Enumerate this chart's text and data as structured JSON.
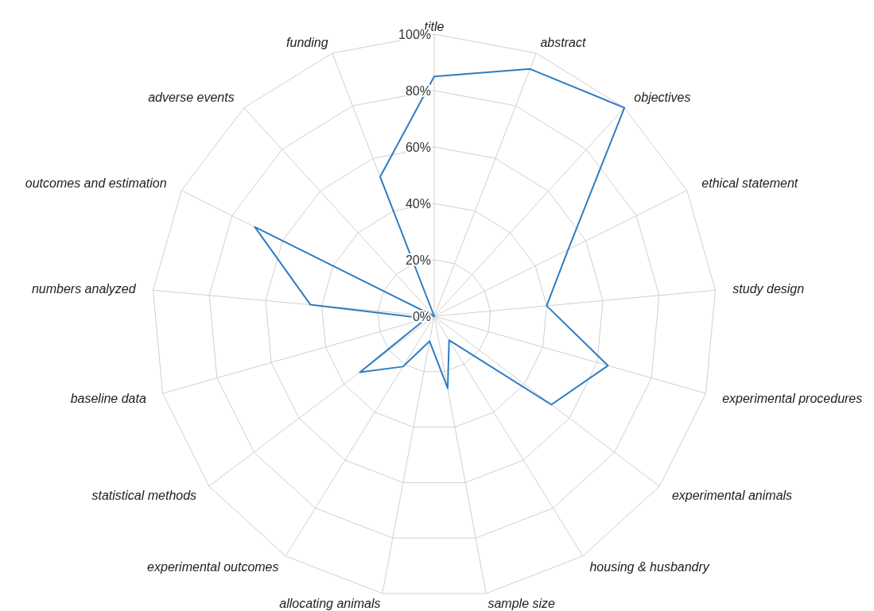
{
  "chart_data": {
    "type": "radar",
    "categories": [
      "title",
      "abstract",
      "objectives",
      "ethical statement",
      "study design",
      "experimental procedures",
      "experimental animals",
      "housing & husbandry",
      "sample size",
      "allocating animals",
      "experimental outcomes",
      "statistical methods",
      "baseline data",
      "numbers analyzed",
      "outcomes and estimation",
      "adverse events",
      "funding"
    ],
    "series": [
      {
        "color": "#2e7dc2",
        "values": [
          85,
          94,
          100,
          53,
          40,
          64,
          52,
          10,
          26,
          9,
          21,
          33,
          3,
          44,
          71,
          0,
          53
        ]
      }
    ],
    "ylim": [
      0,
      100
    ],
    "yticks": [
      {
        "value": 0,
        "label": "0%"
      },
      {
        "value": 20,
        "label": "20%"
      },
      {
        "value": 40,
        "label": "40%"
      },
      {
        "value": 60,
        "label": "60%"
      },
      {
        "value": 80,
        "label": "80%"
      },
      {
        "value": 100,
        "label": "100%"
      }
    ],
    "grid": true,
    "marker": "none",
    "line_style": "solid"
  }
}
